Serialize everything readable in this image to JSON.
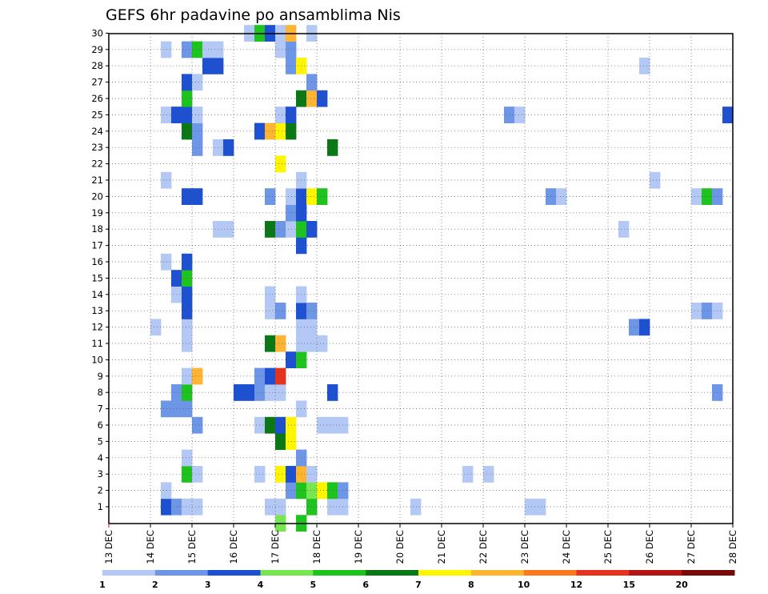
{
  "chart_data": {
    "type": "heatmap",
    "title": "GEFS 6hr padavine po ansamblima Nis",
    "x_ticks": [
      "13 DEC",
      "14 DEC",
      "15 DEC",
      "16 DEC",
      "17 DEC",
      "18 DEC",
      "19 DEC",
      "20 DEC",
      "21 DEC",
      "22 DEC",
      "23 DEC",
      "24 DEC",
      "25 DEC",
      "26 DEC",
      "27 DEC",
      "28 DEC"
    ],
    "y_ticks": [
      1,
      2,
      3,
      4,
      5,
      6,
      7,
      8,
      9,
      10,
      11,
      12,
      13,
      14,
      15,
      16,
      17,
      18,
      19,
      20,
      21,
      22,
      23,
      24,
      25,
      26,
      27,
      28,
      29,
      30
    ],
    "x_unit": "6-hour steps from 13 DEC 00Z",
    "x_range": [
      0,
      60
    ],
    "y_range": [
      0,
      30
    ],
    "grid": true,
    "legend": {
      "placement": "bottom",
      "labels": [
        "1",
        "2",
        "3",
        "4",
        "5",
        "6",
        "7",
        "8",
        "10",
        "12",
        "15",
        "20"
      ],
      "colors": [
        "#b4c8f5",
        "#6e96e6",
        "#1e50d2",
        "#78e650",
        "#1ec31e",
        "#0a7814",
        "#fff500",
        "#ffb432",
        "#ff781e",
        "#e6321e",
        "#b41414",
        "#780a0a"
      ]
    },
    "cells": [
      [
        16,
        0,
        3
      ],
      [
        18,
        0,
        4
      ],
      [
        5,
        1,
        2
      ],
      [
        6,
        1,
        1
      ],
      [
        7,
        1,
        0
      ],
      [
        8,
        1,
        0
      ],
      [
        15,
        1,
        0
      ],
      [
        16,
        1,
        0
      ],
      [
        19,
        1,
        4
      ],
      [
        21,
        1,
        0
      ],
      [
        22,
        1,
        0
      ],
      [
        29,
        1,
        0
      ],
      [
        40,
        1,
        0
      ],
      [
        41,
        1,
        0
      ],
      [
        5,
        2,
        0
      ],
      [
        17,
        2,
        1
      ],
      [
        18,
        2,
        4
      ],
      [
        19,
        2,
        3
      ],
      [
        20,
        2,
        6
      ],
      [
        21,
        2,
        4
      ],
      [
        22,
        2,
        1
      ],
      [
        7,
        3,
        4
      ],
      [
        8,
        3,
        0
      ],
      [
        14,
        3,
        0
      ],
      [
        16,
        3,
        6
      ],
      [
        17,
        3,
        2
      ],
      [
        18,
        3,
        7
      ],
      [
        19,
        3,
        0
      ],
      [
        34,
        3,
        0
      ],
      [
        36,
        3,
        0
      ],
      [
        7,
        4,
        0
      ],
      [
        18,
        4,
        1
      ],
      [
        16,
        5,
        5
      ],
      [
        17,
        5,
        6
      ],
      [
        8,
        6,
        1
      ],
      [
        14,
        6,
        0
      ],
      [
        15,
        6,
        5
      ],
      [
        16,
        6,
        2
      ],
      [
        17,
        6,
        6
      ],
      [
        20,
        6,
        0
      ],
      [
        21,
        6,
        0
      ],
      [
        22,
        6,
        0
      ],
      [
        5,
        7,
        1
      ],
      [
        6,
        7,
        1
      ],
      [
        7,
        7,
        1
      ],
      [
        18,
        7,
        0
      ],
      [
        6,
        8,
        1
      ],
      [
        7,
        8,
        4
      ],
      [
        12,
        8,
        2
      ],
      [
        13,
        8,
        2
      ],
      [
        14,
        8,
        1
      ],
      [
        15,
        8,
        0
      ],
      [
        16,
        8,
        0
      ],
      [
        21,
        8,
        2
      ],
      [
        58,
        8,
        1
      ],
      [
        7,
        9,
        0
      ],
      [
        8,
        9,
        7
      ],
      [
        14,
        9,
        1
      ],
      [
        15,
        9,
        2
      ],
      [
        16,
        9,
        9
      ],
      [
        17,
        10,
        2
      ],
      [
        18,
        10,
        4
      ],
      [
        7,
        11,
        0
      ],
      [
        15,
        11,
        5
      ],
      [
        16,
        11,
        7
      ],
      [
        18,
        11,
        0
      ],
      [
        19,
        11,
        0
      ],
      [
        20,
        11,
        0
      ],
      [
        4,
        12,
        0
      ],
      [
        7,
        12,
        0
      ],
      [
        18,
        12,
        0
      ],
      [
        19,
        12,
        0
      ],
      [
        50,
        12,
        1
      ],
      [
        51,
        12,
        2
      ],
      [
        7,
        13,
        2
      ],
      [
        15,
        13,
        0
      ],
      [
        16,
        13,
        1
      ],
      [
        18,
        13,
        2
      ],
      [
        19,
        13,
        1
      ],
      [
        56,
        13,
        0
      ],
      [
        57,
        13,
        1
      ],
      [
        58,
        13,
        0
      ],
      [
        6,
        14,
        0
      ],
      [
        7,
        14,
        2
      ],
      [
        15,
        14,
        0
      ],
      [
        18,
        14,
        0
      ],
      [
        6,
        15,
        2
      ],
      [
        7,
        15,
        4
      ],
      [
        5,
        16,
        0
      ],
      [
        7,
        16,
        2
      ],
      [
        18,
        17,
        2
      ],
      [
        10,
        18,
        0
      ],
      [
        11,
        18,
        0
      ],
      [
        15,
        18,
        5
      ],
      [
        16,
        18,
        1
      ],
      [
        17,
        18,
        0
      ],
      [
        18,
        18,
        4
      ],
      [
        19,
        18,
        2
      ],
      [
        49,
        18,
        0
      ],
      [
        17,
        19,
        1
      ],
      [
        18,
        19,
        2
      ],
      [
        7,
        20,
        2
      ],
      [
        8,
        20,
        2
      ],
      [
        15,
        20,
        1
      ],
      [
        17,
        20,
        0
      ],
      [
        18,
        20,
        2
      ],
      [
        19,
        20,
        6
      ],
      [
        20,
        20,
        4
      ],
      [
        42,
        20,
        1
      ],
      [
        43,
        20,
        0
      ],
      [
        56,
        20,
        0
      ],
      [
        57,
        20,
        4
      ],
      [
        58,
        20,
        1
      ],
      [
        5,
        21,
        0
      ],
      [
        18,
        21,
        0
      ],
      [
        52,
        21,
        0
      ],
      [
        16,
        22,
        6
      ],
      [
        8,
        23,
        1
      ],
      [
        10,
        23,
        0
      ],
      [
        11,
        23,
        2
      ],
      [
        21,
        23,
        5
      ],
      [
        7,
        24,
        5
      ],
      [
        8,
        24,
        1
      ],
      [
        14,
        24,
        2
      ],
      [
        15,
        24,
        7
      ],
      [
        16,
        24,
        6
      ],
      [
        17,
        24,
        5
      ],
      [
        5,
        25,
        0
      ],
      [
        6,
        25,
        2
      ],
      [
        7,
        25,
        2
      ],
      [
        8,
        25,
        0
      ],
      [
        16,
        25,
        0
      ],
      [
        17,
        25,
        2
      ],
      [
        38,
        25,
        1
      ],
      [
        39,
        25,
        0
      ],
      [
        59,
        25,
        2
      ],
      [
        7,
        26,
        4
      ],
      [
        18,
        26,
        5
      ],
      [
        19,
        26,
        7
      ],
      [
        20,
        26,
        2
      ],
      [
        7,
        27,
        2
      ],
      [
        8,
        27,
        0
      ],
      [
        19,
        27,
        1
      ],
      [
        9,
        28,
        2
      ],
      [
        10,
        28,
        2
      ],
      [
        17,
        28,
        1
      ],
      [
        18,
        28,
        6
      ],
      [
        51,
        28,
        0
      ],
      [
        5,
        29,
        0
      ],
      [
        7,
        29,
        1
      ],
      [
        8,
        29,
        4
      ],
      [
        9,
        29,
        0
      ],
      [
        10,
        29,
        0
      ],
      [
        16,
        29,
        0
      ],
      [
        17,
        29,
        1
      ],
      [
        13,
        30,
        0
      ],
      [
        14,
        30,
        4
      ],
      [
        15,
        30,
        2
      ],
      [
        16,
        30,
        0
      ],
      [
        17,
        30,
        7
      ],
      [
        19,
        30,
        0
      ]
    ]
  }
}
